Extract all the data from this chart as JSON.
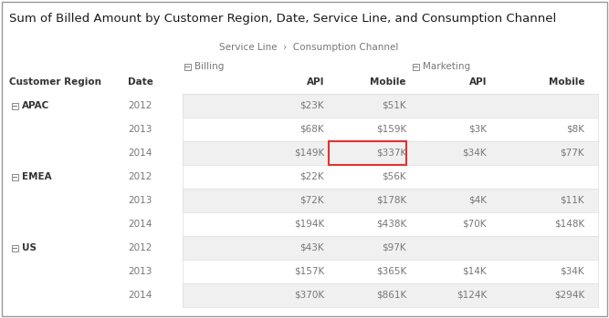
{
  "title": "Sum of Billed Amount by Customer Region, Date, Service Line, and Consumption Channel",
  "breadcrumb": "Service Line  ›  Consumption Channel",
  "rows": [
    {
      "region": "APAC",
      "date": "2012",
      "billing_api": "$23K",
      "billing_mobile": "$51K",
      "marketing_api": "",
      "marketing_mobile": "",
      "shaded": true,
      "highlight_mobile": false
    },
    {
      "region": "",
      "date": "2013",
      "billing_api": "$68K",
      "billing_mobile": "$159K",
      "marketing_api": "$3K",
      "marketing_mobile": "$8K",
      "shaded": false,
      "highlight_mobile": false
    },
    {
      "region": "",
      "date": "2014",
      "billing_api": "$149K",
      "billing_mobile": "$337K",
      "marketing_api": "$34K",
      "marketing_mobile": "$77K",
      "shaded": true,
      "highlight_mobile": true
    },
    {
      "region": "EMEA",
      "date": "2012",
      "billing_api": "$22K",
      "billing_mobile": "$56K",
      "marketing_api": "",
      "marketing_mobile": "",
      "shaded": false,
      "highlight_mobile": false
    },
    {
      "region": "",
      "date": "2013",
      "billing_api": "$72K",
      "billing_mobile": "$178K",
      "marketing_api": "$4K",
      "marketing_mobile": "$11K",
      "shaded": true,
      "highlight_mobile": false
    },
    {
      "region": "",
      "date": "2014",
      "billing_api": "$194K",
      "billing_mobile": "$438K",
      "marketing_api": "$70K",
      "marketing_mobile": "$148K",
      "shaded": false,
      "highlight_mobile": false
    },
    {
      "region": "US",
      "date": "2012",
      "billing_api": "$43K",
      "billing_mobile": "$97K",
      "marketing_api": "",
      "marketing_mobile": "",
      "shaded": true,
      "highlight_mobile": false
    },
    {
      "region": "",
      "date": "2013",
      "billing_api": "$157K",
      "billing_mobile": "$365K",
      "marketing_api": "$14K",
      "marketing_mobile": "$34K",
      "shaded": false,
      "highlight_mobile": false
    },
    {
      "region": "",
      "date": "2014",
      "billing_api": "$370K",
      "billing_mobile": "$861K",
      "marketing_api": "$124K",
      "marketing_mobile": "$294K",
      "shaded": true,
      "highlight_mobile": false
    }
  ],
  "bg_color": "#ffffff",
  "shaded_color": "#f0f0f0",
  "text_color": "#777777",
  "bold_color": "#333333",
  "title_color": "#1a1a1a",
  "highlight_border": "#e63030",
  "border_color": "#dddddd",
  "title_fontsize": 9.5,
  "label_fontsize": 7.5,
  "cell_fontsize": 7.5,
  "breadcrumb_fontsize": 7.5,
  "fig_width": 6.67,
  "fig_height": 3.49,
  "dpi": 100
}
